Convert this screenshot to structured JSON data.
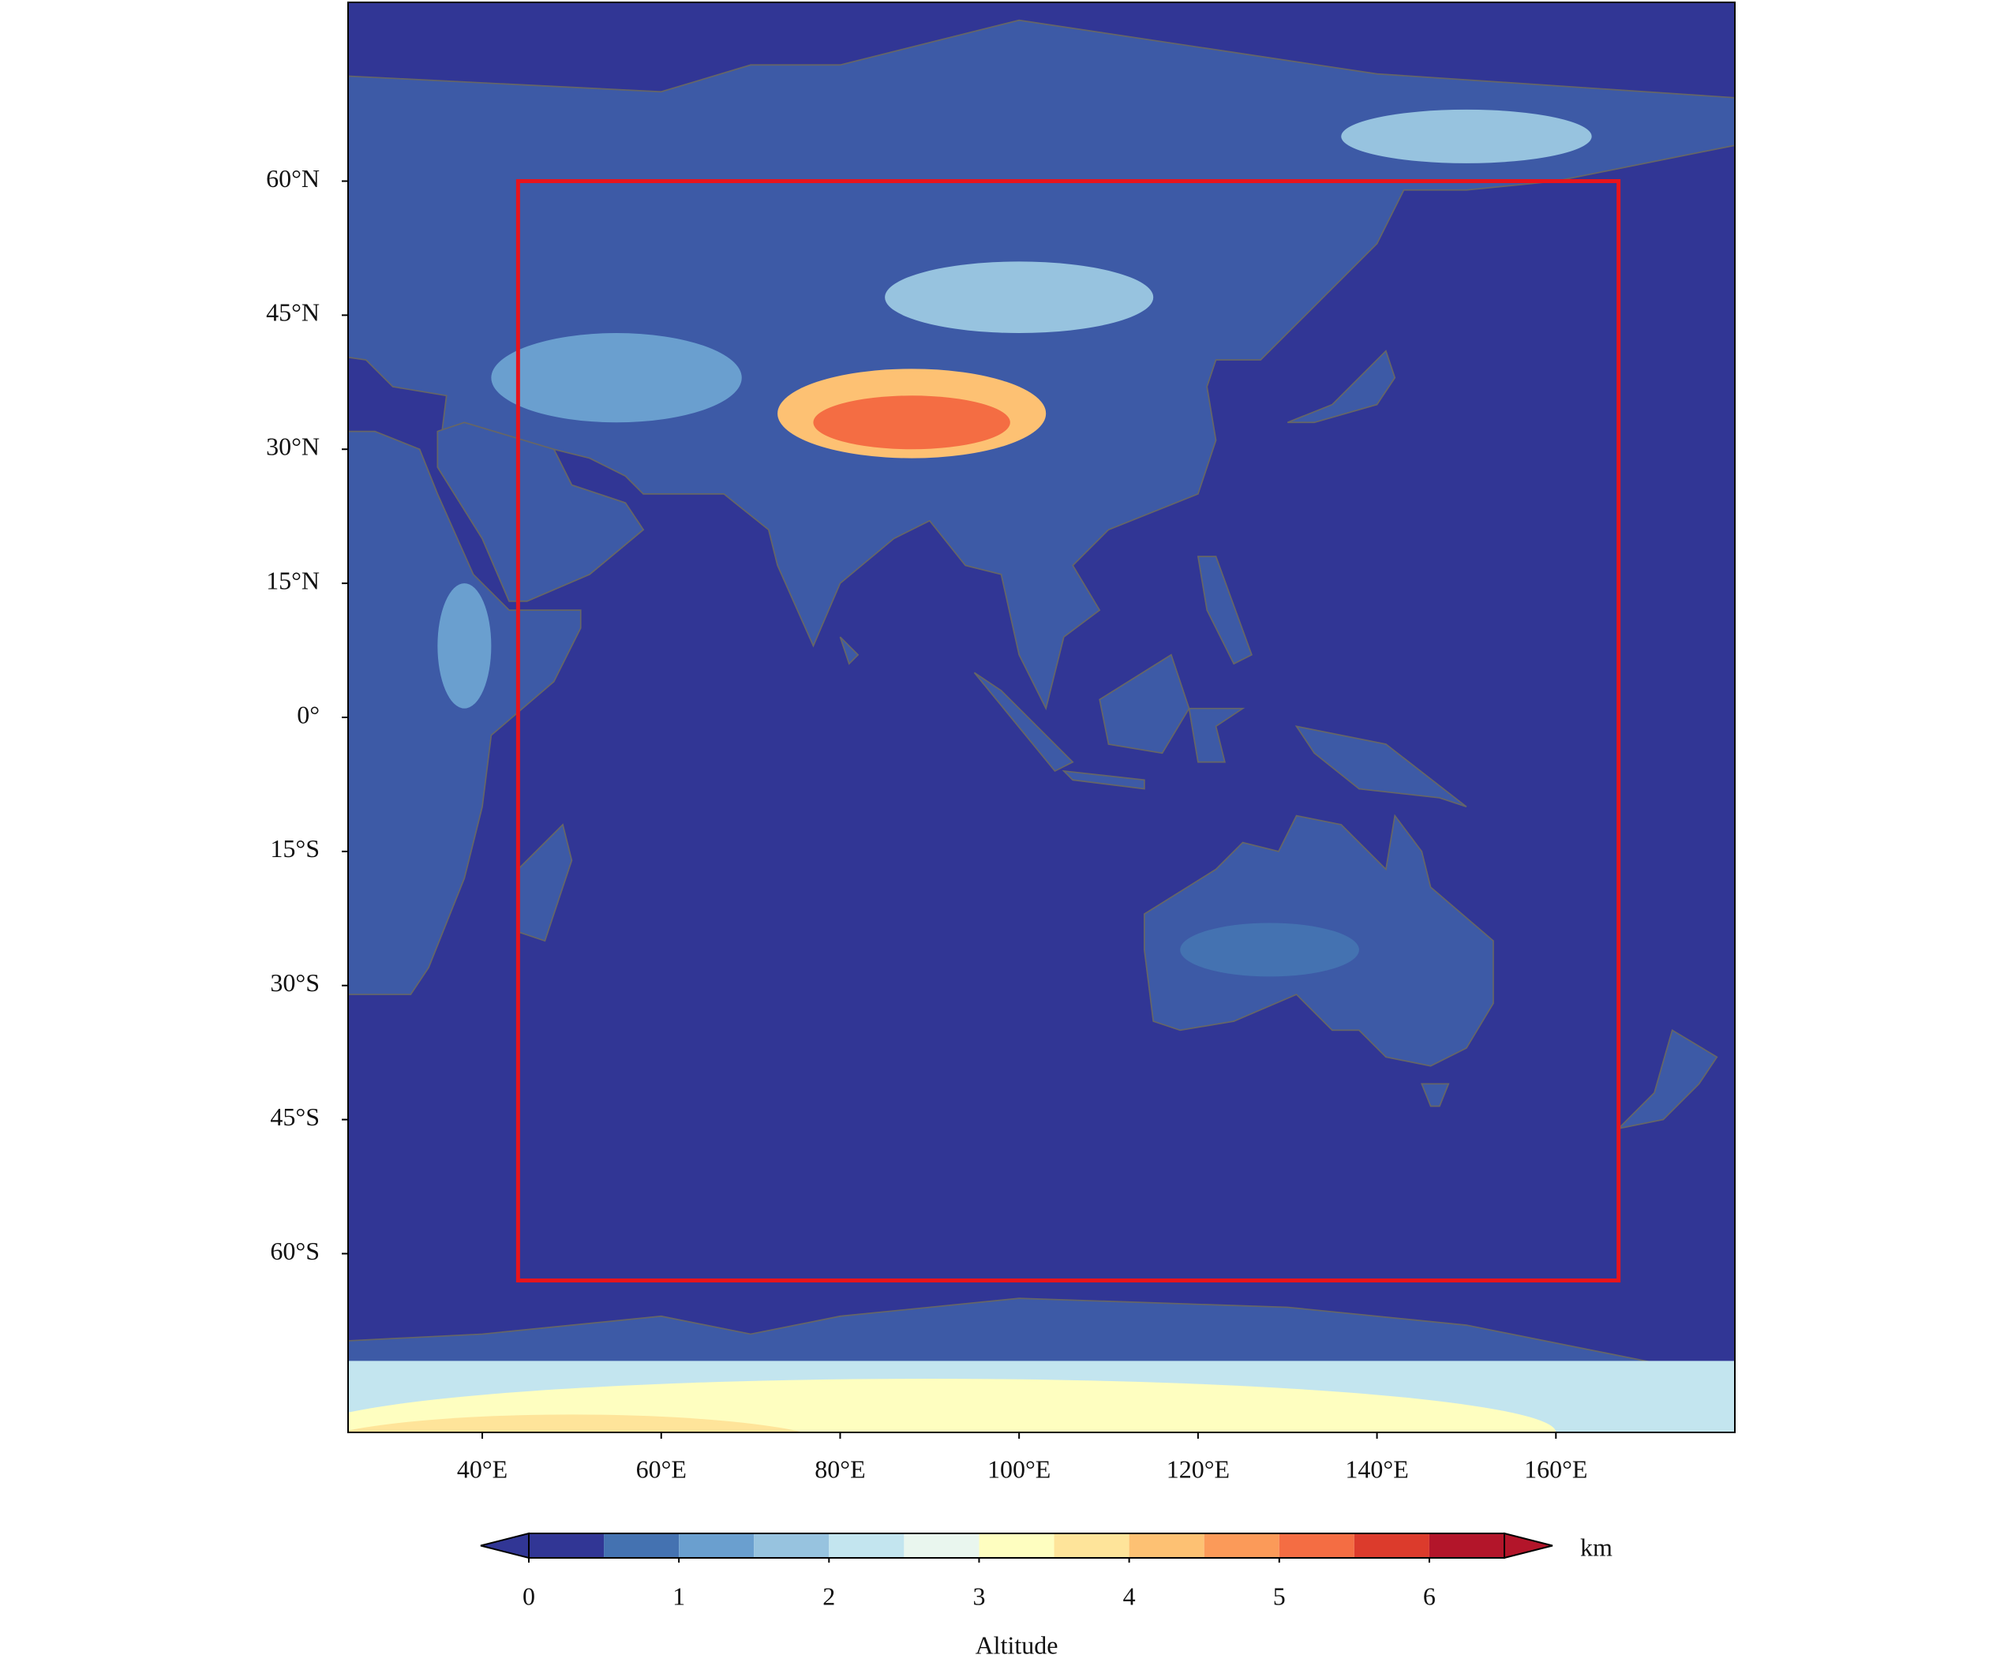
{
  "map": {
    "xlim": [
      25,
      180
    ],
    "ylim": [
      -80,
      80
    ],
    "xticks": [
      {
        "value": 40,
        "label": "40°E"
      },
      {
        "value": 60,
        "label": "60°E"
      },
      {
        "value": 80,
        "label": "80°E"
      },
      {
        "value": 100,
        "label": "100°E"
      },
      {
        "value": 120,
        "label": "120°E"
      },
      {
        "value": 140,
        "label": "140°E"
      },
      {
        "value": 160,
        "label": "160°E"
      }
    ],
    "yticks": [
      {
        "value": 60,
        "label": "60°N"
      },
      {
        "value": 45,
        "label": "45°N"
      },
      {
        "value": 30,
        "label": "30°N"
      },
      {
        "value": 15,
        "label": "15°N"
      },
      {
        "value": 0,
        "label": "0°"
      },
      {
        "value": -15,
        "label": "15°S"
      },
      {
        "value": -30,
        "label": "30°S"
      },
      {
        "value": -45,
        "label": "45°S"
      },
      {
        "value": -60,
        "label": "60°S"
      }
    ],
    "domain_box": {
      "lon": [
        44,
        167
      ],
      "lat": [
        -63,
        60
      ],
      "color": "#e8141c"
    }
  },
  "colorbar": {
    "label": "Altitude",
    "units": "km",
    "levels": [
      0,
      0.5,
      1,
      1.5,
      2,
      2.5,
      3,
      3.5,
      4,
      4.5,
      5,
      5.5,
      6,
      6.5
    ],
    "colors": [
      "#313695",
      "#4472b1",
      "#6a9fcf",
      "#97c3df",
      "#c3e5ef",
      "#e9f6ee",
      "#fefec0",
      "#fee49a",
      "#fdc173",
      "#fb9a59",
      "#f46d43",
      "#dc3b2c",
      "#b3152a"
    ],
    "extend_colors": [
      "#313695",
      "#b3152a"
    ],
    "ticks": [
      0,
      1,
      2,
      3,
      4,
      5,
      6
    ]
  }
}
